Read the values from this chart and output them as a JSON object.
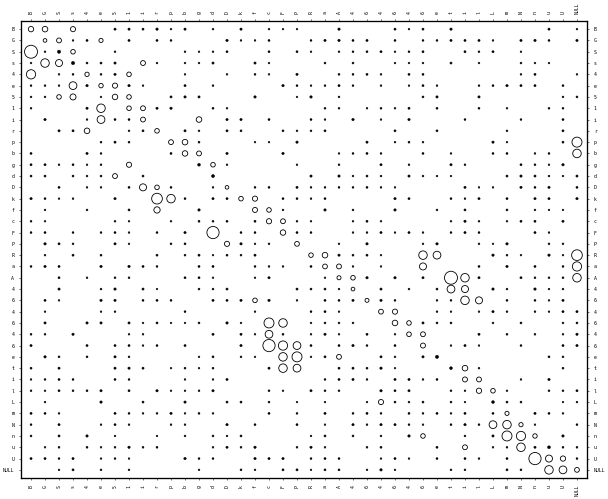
{
  "n": 40,
  "labels": [
    "B",
    "G",
    "S",
    "s",
    "4",
    "e",
    "5",
    "1",
    "i",
    "r",
    "p",
    "b",
    "g",
    "d",
    "D",
    "k",
    "f",
    "c",
    "F",
    "P",
    "R",
    "a",
    "A",
    "4",
    "6",
    "4",
    "6",
    "4",
    "6",
    "e",
    "t",
    "i",
    "l",
    "L",
    "m",
    "N",
    "n",
    "u",
    "U",
    "NULL"
  ],
  "figsize": [
    6.08,
    4.99
  ],
  "dpi": 100,
  "tick_fontsize": 3.5,
  "max_bubble_area": 120,
  "min_dot_area": 1.5,
  "background": "#ffffff",
  "seed": 12345
}
